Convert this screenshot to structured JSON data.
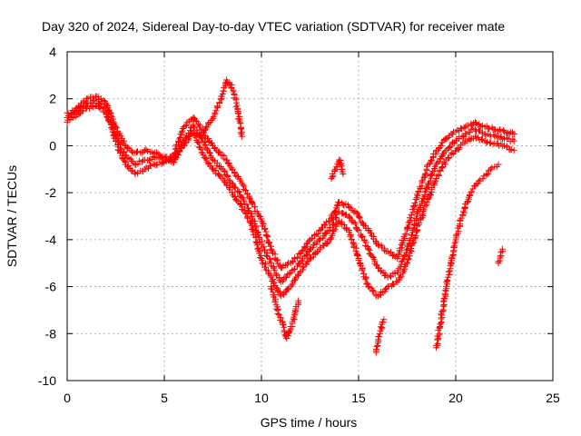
{
  "chart_data": {
    "type": "scatter",
    "title": "Day 320 of 2024, Sidereal Day-to-day VTEC variation (SDTVAR) for receiver mate",
    "xlabel": "GPS time / hours",
    "ylabel": "SDTVAR / TECUs",
    "xlim": [
      0,
      25
    ],
    "ylim": [
      -10,
      4
    ],
    "xticks": [
      0,
      5,
      10,
      15,
      20,
      25
    ],
    "yticks": [
      -10,
      -8,
      -6,
      -4,
      -2,
      0,
      2,
      4
    ],
    "xtick_labels": [
      "0",
      "5",
      "10",
      "15",
      "20",
      "25"
    ],
    "ytick_labels": [
      "-10",
      "-8",
      "-6",
      "-4",
      "-2",
      "0",
      "2",
      "4"
    ],
    "grid": true,
    "marker": "+",
    "color": "#ff0000",
    "series": [
      {
        "x": [
          0.0,
          0.5,
          1.0,
          1.5,
          2.0,
          2.5,
          3.0,
          3.5,
          4.0,
          4.5,
          5.0,
          5.5,
          6.0,
          6.5,
          7.0,
          7.5,
          8.0,
          8.5,
          9.0,
          9.5,
          10.0,
          10.5,
          11.0,
          11.5,
          12.0,
          12.5,
          13.0,
          13.5,
          14.0,
          14.5,
          15.0,
          15.5,
          16.0,
          16.5,
          17.0,
          17.5,
          18.0,
          18.5,
          19.0,
          19.5,
          20.0,
          20.5,
          21.0,
          21.5,
          22.0,
          22.5,
          23.0
        ],
        "y": [
          1.2,
          1.6,
          2.0,
          2.1,
          1.8,
          0.8,
          0.0,
          -0.3,
          -0.2,
          -0.3,
          -0.5,
          -0.4,
          0.8,
          1.2,
          0.6,
          0.0,
          -0.4,
          -1.0,
          -1.6,
          -2.4,
          -3.2,
          -4.4,
          -5.2,
          -5.0,
          -4.6,
          -4.0,
          -3.6,
          -3.2,
          -2.4,
          -2.6,
          -3.0,
          -3.6,
          -4.2,
          -4.5,
          -4.8,
          -3.5,
          -2.2,
          -1.0,
          -0.2,
          0.3,
          0.6,
          0.8,
          1.0,
          0.8,
          0.7,
          0.6,
          0.5
        ]
      },
      {
        "x": [
          0.0,
          0.5,
          1.0,
          1.5,
          2.0,
          2.5,
          3.0,
          3.5,
          4.0,
          4.5,
          5.0,
          5.5,
          6.0,
          6.5,
          7.0,
          7.5,
          8.0,
          8.5,
          9.0,
          9.5,
          10.0,
          10.5,
          11.0,
          11.5,
          12.0,
          12.5,
          13.0,
          13.5,
          14.0,
          14.5,
          15.0,
          15.5,
          16.0,
          16.5,
          17.0,
          17.5,
          18.0,
          18.5,
          19.0,
          19.5,
          20.0,
          20.5,
          21.0,
          21.5,
          22.0,
          22.5,
          23.0
        ],
        "y": [
          1.0,
          1.3,
          1.6,
          1.7,
          1.4,
          0.4,
          -0.4,
          -0.8,
          -0.6,
          -0.5,
          -0.6,
          -0.7,
          0.2,
          0.9,
          0.2,
          -0.6,
          -1.0,
          -1.6,
          -2.2,
          -3.0,
          -4.2,
          -5.0,
          -5.8,
          -5.4,
          -5.0,
          -4.4,
          -4.0,
          -3.6,
          -2.8,
          -3.0,
          -3.6,
          -4.4,
          -5.2,
          -5.6,
          -5.4,
          -4.4,
          -3.0,
          -1.8,
          -0.8,
          -0.2,
          0.2,
          0.5,
          0.7,
          0.5,
          0.4,
          0.3,
          0.2
        ]
      },
      {
        "x": [
          0.0,
          0.5,
          1.0,
          1.5,
          2.0,
          2.5,
          3.0,
          3.5,
          4.0,
          4.5,
          5.0,
          5.5,
          6.0,
          6.5,
          7.0,
          7.5,
          8.0,
          8.5,
          9.0,
          9.5,
          10.0,
          10.5,
          11.0,
          11.5,
          12.0,
          12.5,
          13.0,
          13.5,
          14.0,
          14.5,
          15.0,
          15.5,
          16.0,
          16.5,
          17.0,
          17.5,
          18.0,
          18.5,
          19.0,
          19.5,
          20.0,
          20.5,
          21.0,
          21.5,
          22.0,
          22.5,
          23.0
        ],
        "y": [
          1.4,
          1.5,
          1.8,
          1.9,
          1.6,
          0.2,
          -0.8,
          -1.2,
          -1.0,
          -0.8,
          -0.7,
          -0.5,
          0.0,
          0.6,
          -0.4,
          -1.0,
          -1.4,
          -2.0,
          -2.6,
          -3.4,
          -4.8,
          -5.6,
          -6.4,
          -6.0,
          -5.4,
          -4.8,
          -4.4,
          -4.0,
          -3.2,
          -3.6,
          -4.8,
          -6.0,
          -6.4,
          -6.0,
          -5.8,
          -5.0,
          -3.6,
          -2.4,
          -1.4,
          -0.6,
          -0.2,
          0.2,
          0.4,
          0.2,
          0.1,
          0.0,
          -0.2
        ]
      },
      {
        "x": [
          6.8,
          7.2,
          7.6,
          8.0,
          8.2,
          8.4,
          8.6,
          8.8,
          9.0
        ],
        "y": [
          0.4,
          0.8,
          1.4,
          2.2,
          2.8,
          2.6,
          2.2,
          1.4,
          0.4
        ]
      },
      {
        "x": [
          10.5,
          10.7,
          10.9,
          11.1,
          11.3,
          11.5,
          11.7,
          11.9
        ],
        "y": [
          -6.0,
          -6.6,
          -7.2,
          -7.6,
          -8.2,
          -7.8,
          -7.2,
          -6.6
        ]
      },
      {
        "x": [
          13.6,
          13.8,
          14.0,
          14.2
        ],
        "y": [
          -1.4,
          -1.0,
          -0.6,
          -1.2
        ]
      },
      {
        "x": [
          15.9,
          16.0,
          16.1,
          16.2,
          16.3
        ],
        "y": [
          -8.8,
          -8.4,
          -8.0,
          -7.6,
          -7.4
        ]
      },
      {
        "x": [
          19.0,
          19.2,
          19.4,
          19.6,
          19.8,
          20.0,
          20.2,
          20.4,
          20.6,
          20.8,
          21.0,
          21.2,
          21.4,
          21.6,
          21.8,
          22.0,
          22.2
        ],
        "y": [
          -8.6,
          -7.6,
          -6.6,
          -5.6,
          -4.8,
          -4.0,
          -3.4,
          -2.8,
          -2.4,
          -2.0,
          -1.7,
          -1.5,
          -1.4,
          -1.2,
          -1.0,
          -0.9,
          -0.8
        ]
      },
      {
        "x": [
          22.2,
          22.3,
          22.4
        ],
        "y": [
          -5.0,
          -4.7,
          -4.4
        ]
      }
    ]
  }
}
